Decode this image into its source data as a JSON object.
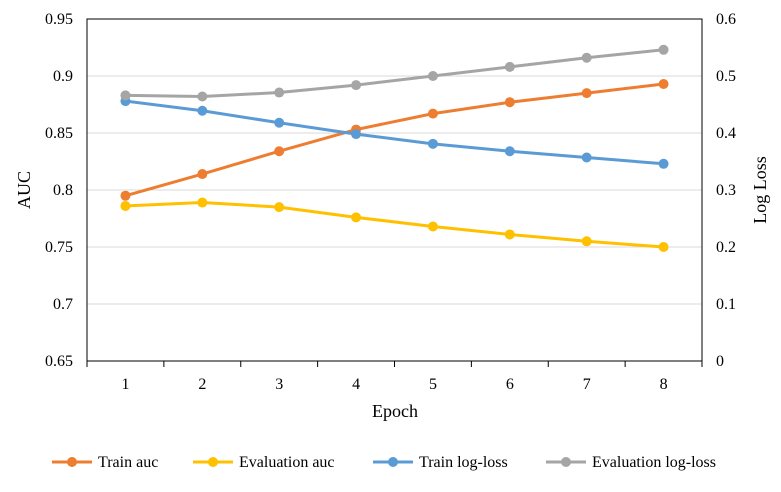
{
  "chart_data": {
    "type": "line",
    "title": "",
    "xlabel": "Epoch",
    "ylabel_left": "AUC",
    "ylabel_right": "Log Loss",
    "x": [
      1,
      2,
      3,
      4,
      5,
      6,
      7,
      8
    ],
    "x_tick_labels": [
      "1",
      "2",
      "3",
      "4",
      "5",
      "6",
      "7",
      "8"
    ],
    "ylim_left": [
      0.65,
      0.95
    ],
    "yticks_left": [
      "0.65",
      "0.7",
      "0.75",
      "0.8",
      "0.85",
      "0.9",
      "0.95"
    ],
    "ylim_right": [
      0,
      0.6
    ],
    "yticks_right": [
      "0",
      "0.1",
      "0.2",
      "0.3",
      "0.4",
      "0.5",
      "0.6"
    ],
    "grid": "horizontal",
    "legend_position": "bottom",
    "series": [
      {
        "name": "Train auc",
        "axis": "left",
        "color": "#ED7D31",
        "values": [
          0.795,
          0.814,
          0.834,
          0.853,
          0.867,
          0.877,
          0.885,
          0.893
        ]
      },
      {
        "name": "Evaluation auc",
        "axis": "left",
        "color": "#FFC000",
        "values": [
          0.786,
          0.789,
          0.785,
          0.776,
          0.768,
          0.761,
          0.755,
          0.75
        ]
      },
      {
        "name": "Train log-loss",
        "axis": "right",
        "color": "#5B9BD5",
        "values": [
          0.456,
          0.439,
          0.418,
          0.398,
          0.381,
          0.368,
          0.357,
          0.346
        ]
      },
      {
        "name": "Evaluation log-loss",
        "axis": "right",
        "color": "#A5A5A5",
        "values": [
          0.466,
          0.464,
          0.471,
          0.484,
          0.5,
          0.516,
          0.532,
          0.546
        ]
      }
    ]
  }
}
